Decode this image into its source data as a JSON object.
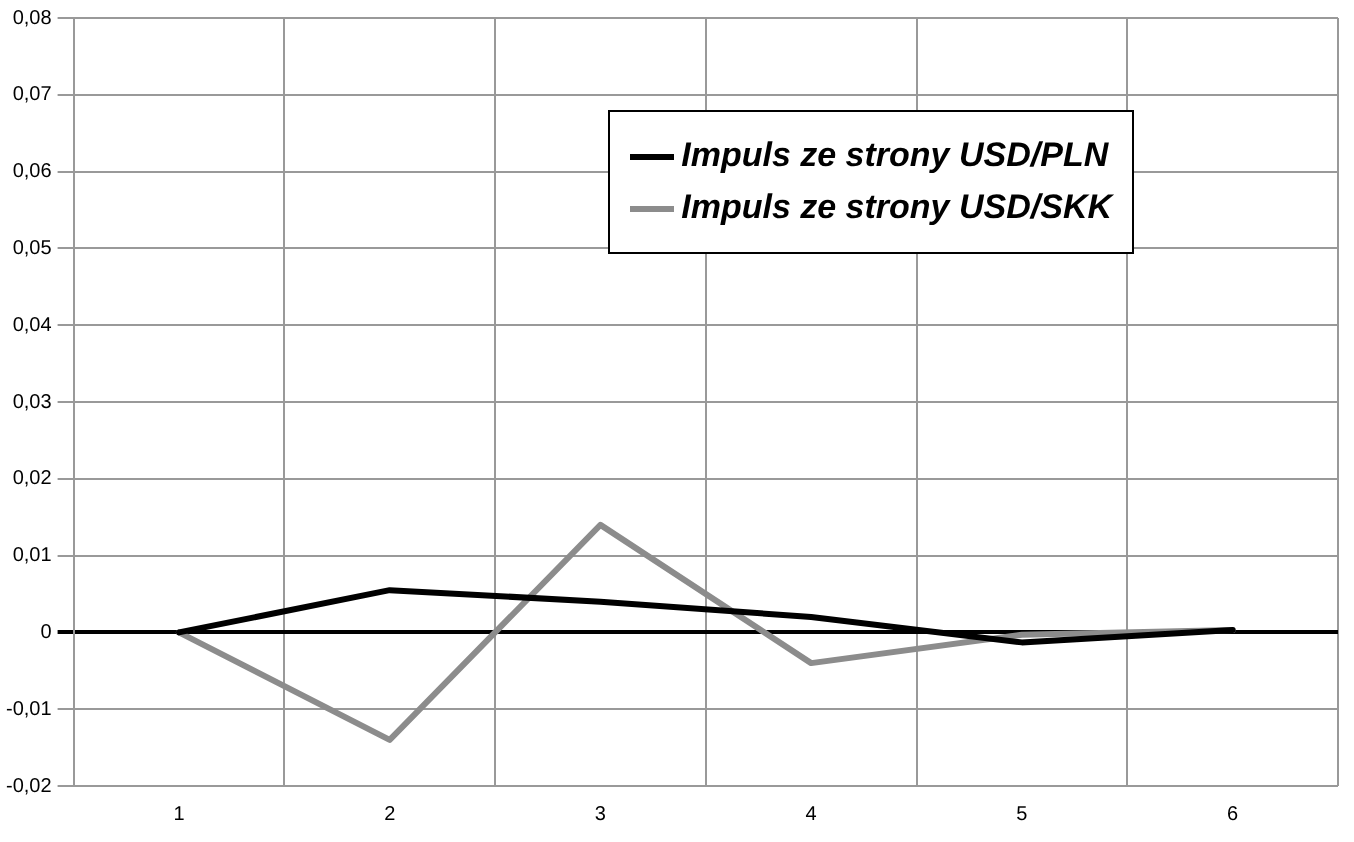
{
  "chart_data": {
    "type": "line",
    "categories": [
      "1",
      "2",
      "3",
      "4",
      "5",
      "6"
    ],
    "series": [
      {
        "name": "Impuls ze strony USD/PLN",
        "color": "#000000",
        "values": [
          0,
          0.0055,
          0.004,
          0.002,
          -0.0013,
          0.0003
        ]
      },
      {
        "name": "Impuls ze strony USD/SKK",
        "color": "#8c8c8c",
        "values": [
          0,
          -0.014,
          0.014,
          -0.004,
          -0.0003,
          0.0003
        ]
      }
    ],
    "ylim": [
      -0.02,
      0.08
    ],
    "yticks": [
      {
        "value": -0.02,
        "label": "-0,02"
      },
      {
        "value": -0.01,
        "label": "-0,01"
      },
      {
        "value": 0,
        "label": "0"
      },
      {
        "value": 0.01,
        "label": "0,01"
      },
      {
        "value": 0.02,
        "label": "0,02"
      },
      {
        "value": 0.03,
        "label": "0,03"
      },
      {
        "value": 0.04,
        "label": "0,04"
      },
      {
        "value": 0.05,
        "label": "0,05"
      },
      {
        "value": 0.06,
        "label": "0,06"
      },
      {
        "value": 0.07,
        "label": "0,07"
      },
      {
        "value": 0.08,
        "label": "0,08"
      }
    ],
    "grid": true,
    "legend": "top right",
    "marker": "none",
    "line_style": "solid"
  }
}
